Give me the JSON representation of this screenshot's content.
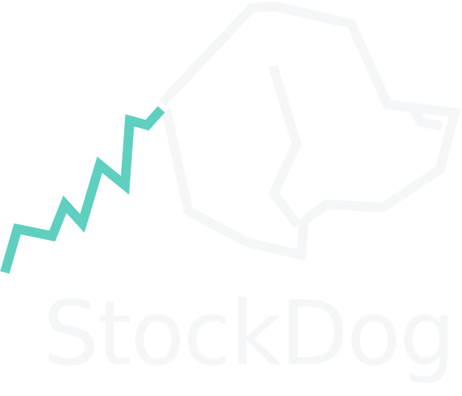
{
  "logo": {
    "wordmark": "StockDog",
    "colors": {
      "dog_outline": "#f5f6f8",
      "stock_line": "#5fcfc0",
      "wordmark": "#f5f6f7",
      "background": "#ffffff"
    },
    "icons": [
      "dog-head-outline-icon",
      "stock-chart-line-icon"
    ]
  }
}
